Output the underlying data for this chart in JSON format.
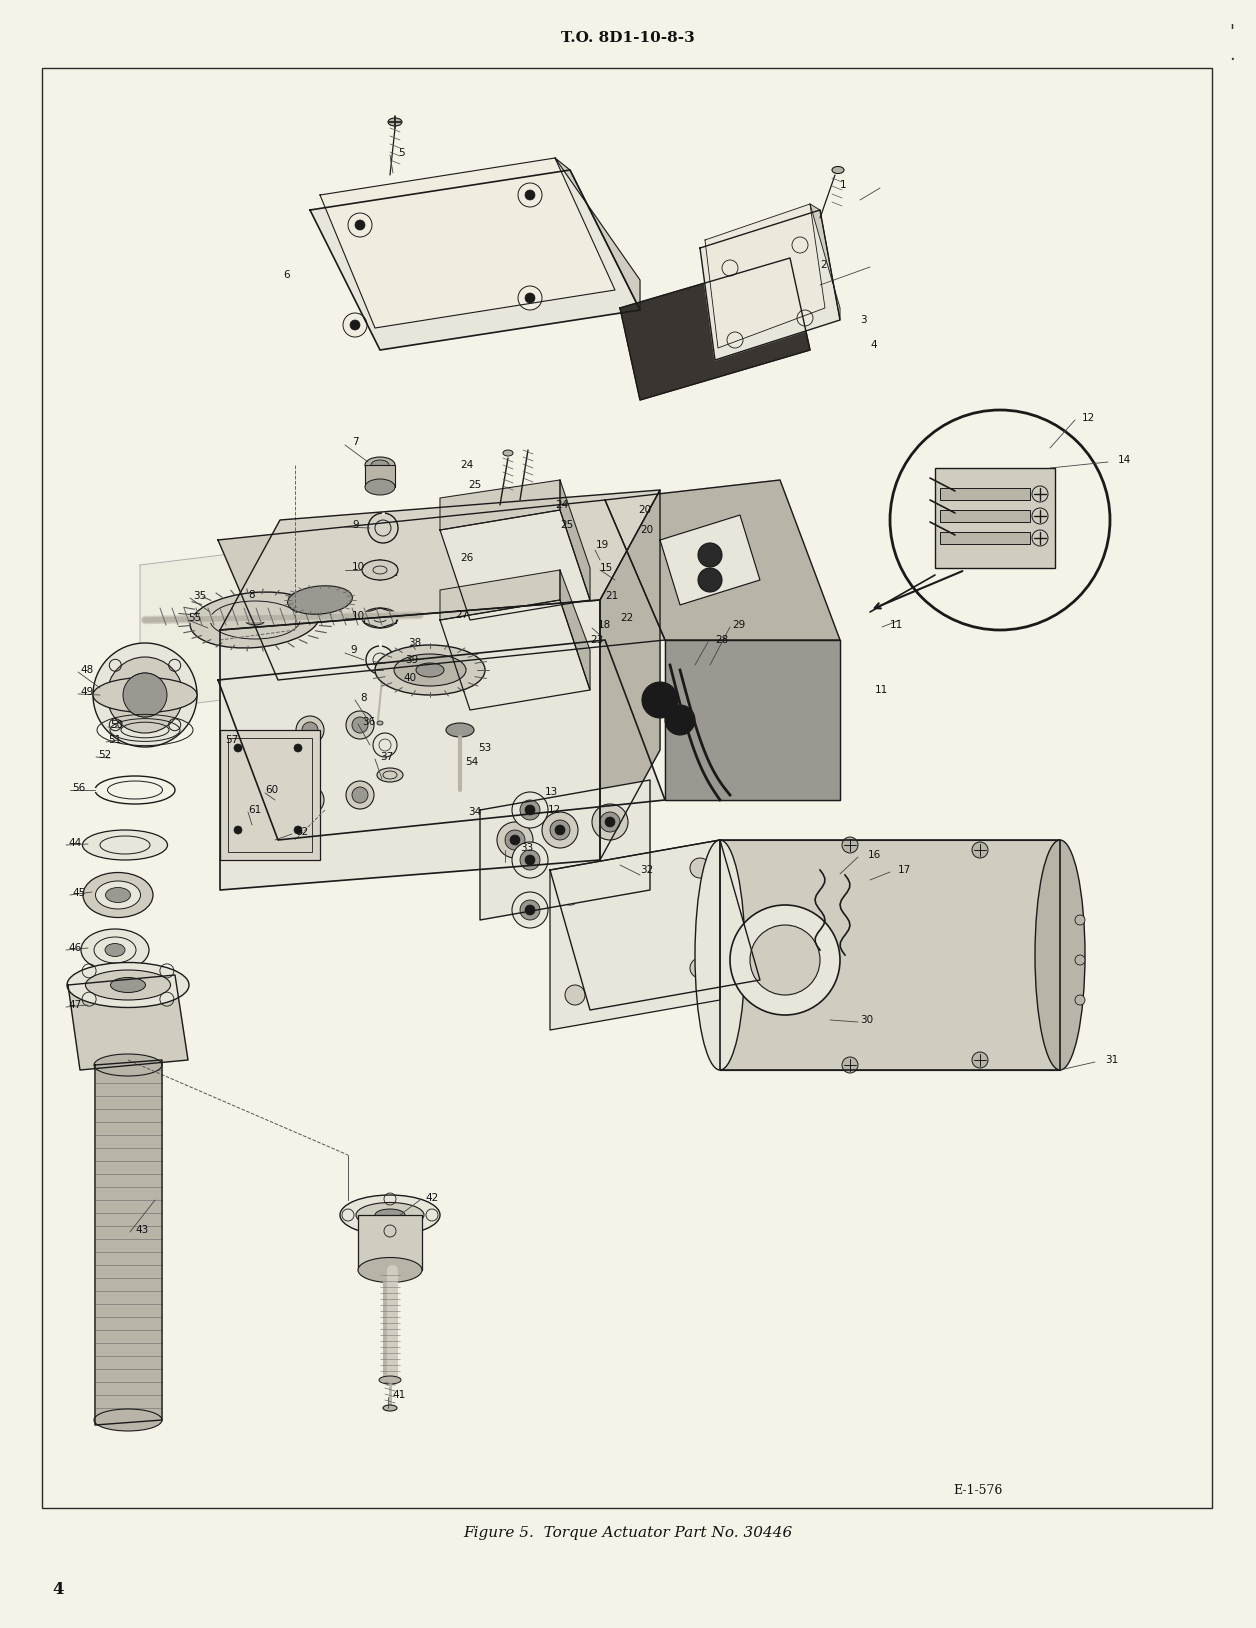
{
  "bg_color": "#f5f2e8",
  "page_bg": "#f5f2e8",
  "border_color": "#2a2a2a",
  "header_text": "T.O. 8D1-10-8-3",
  "header_fontsize": 11,
  "footer_caption": "Figure 5.  Torque Actuator Part No. 30446",
  "footer_caption_fontsize": 11,
  "page_number": "4",
  "page_number_fontsize": 12,
  "ref_number": "E-1-576",
  "ref_fontsize": 9,
  "lc": "#1a1a1a",
  "fc_light": "#e8e5da",
  "fc_mid": "#d0cdc0",
  "fc_dark": "#b8b5a8",
  "fc_darker": "#9a9890"
}
